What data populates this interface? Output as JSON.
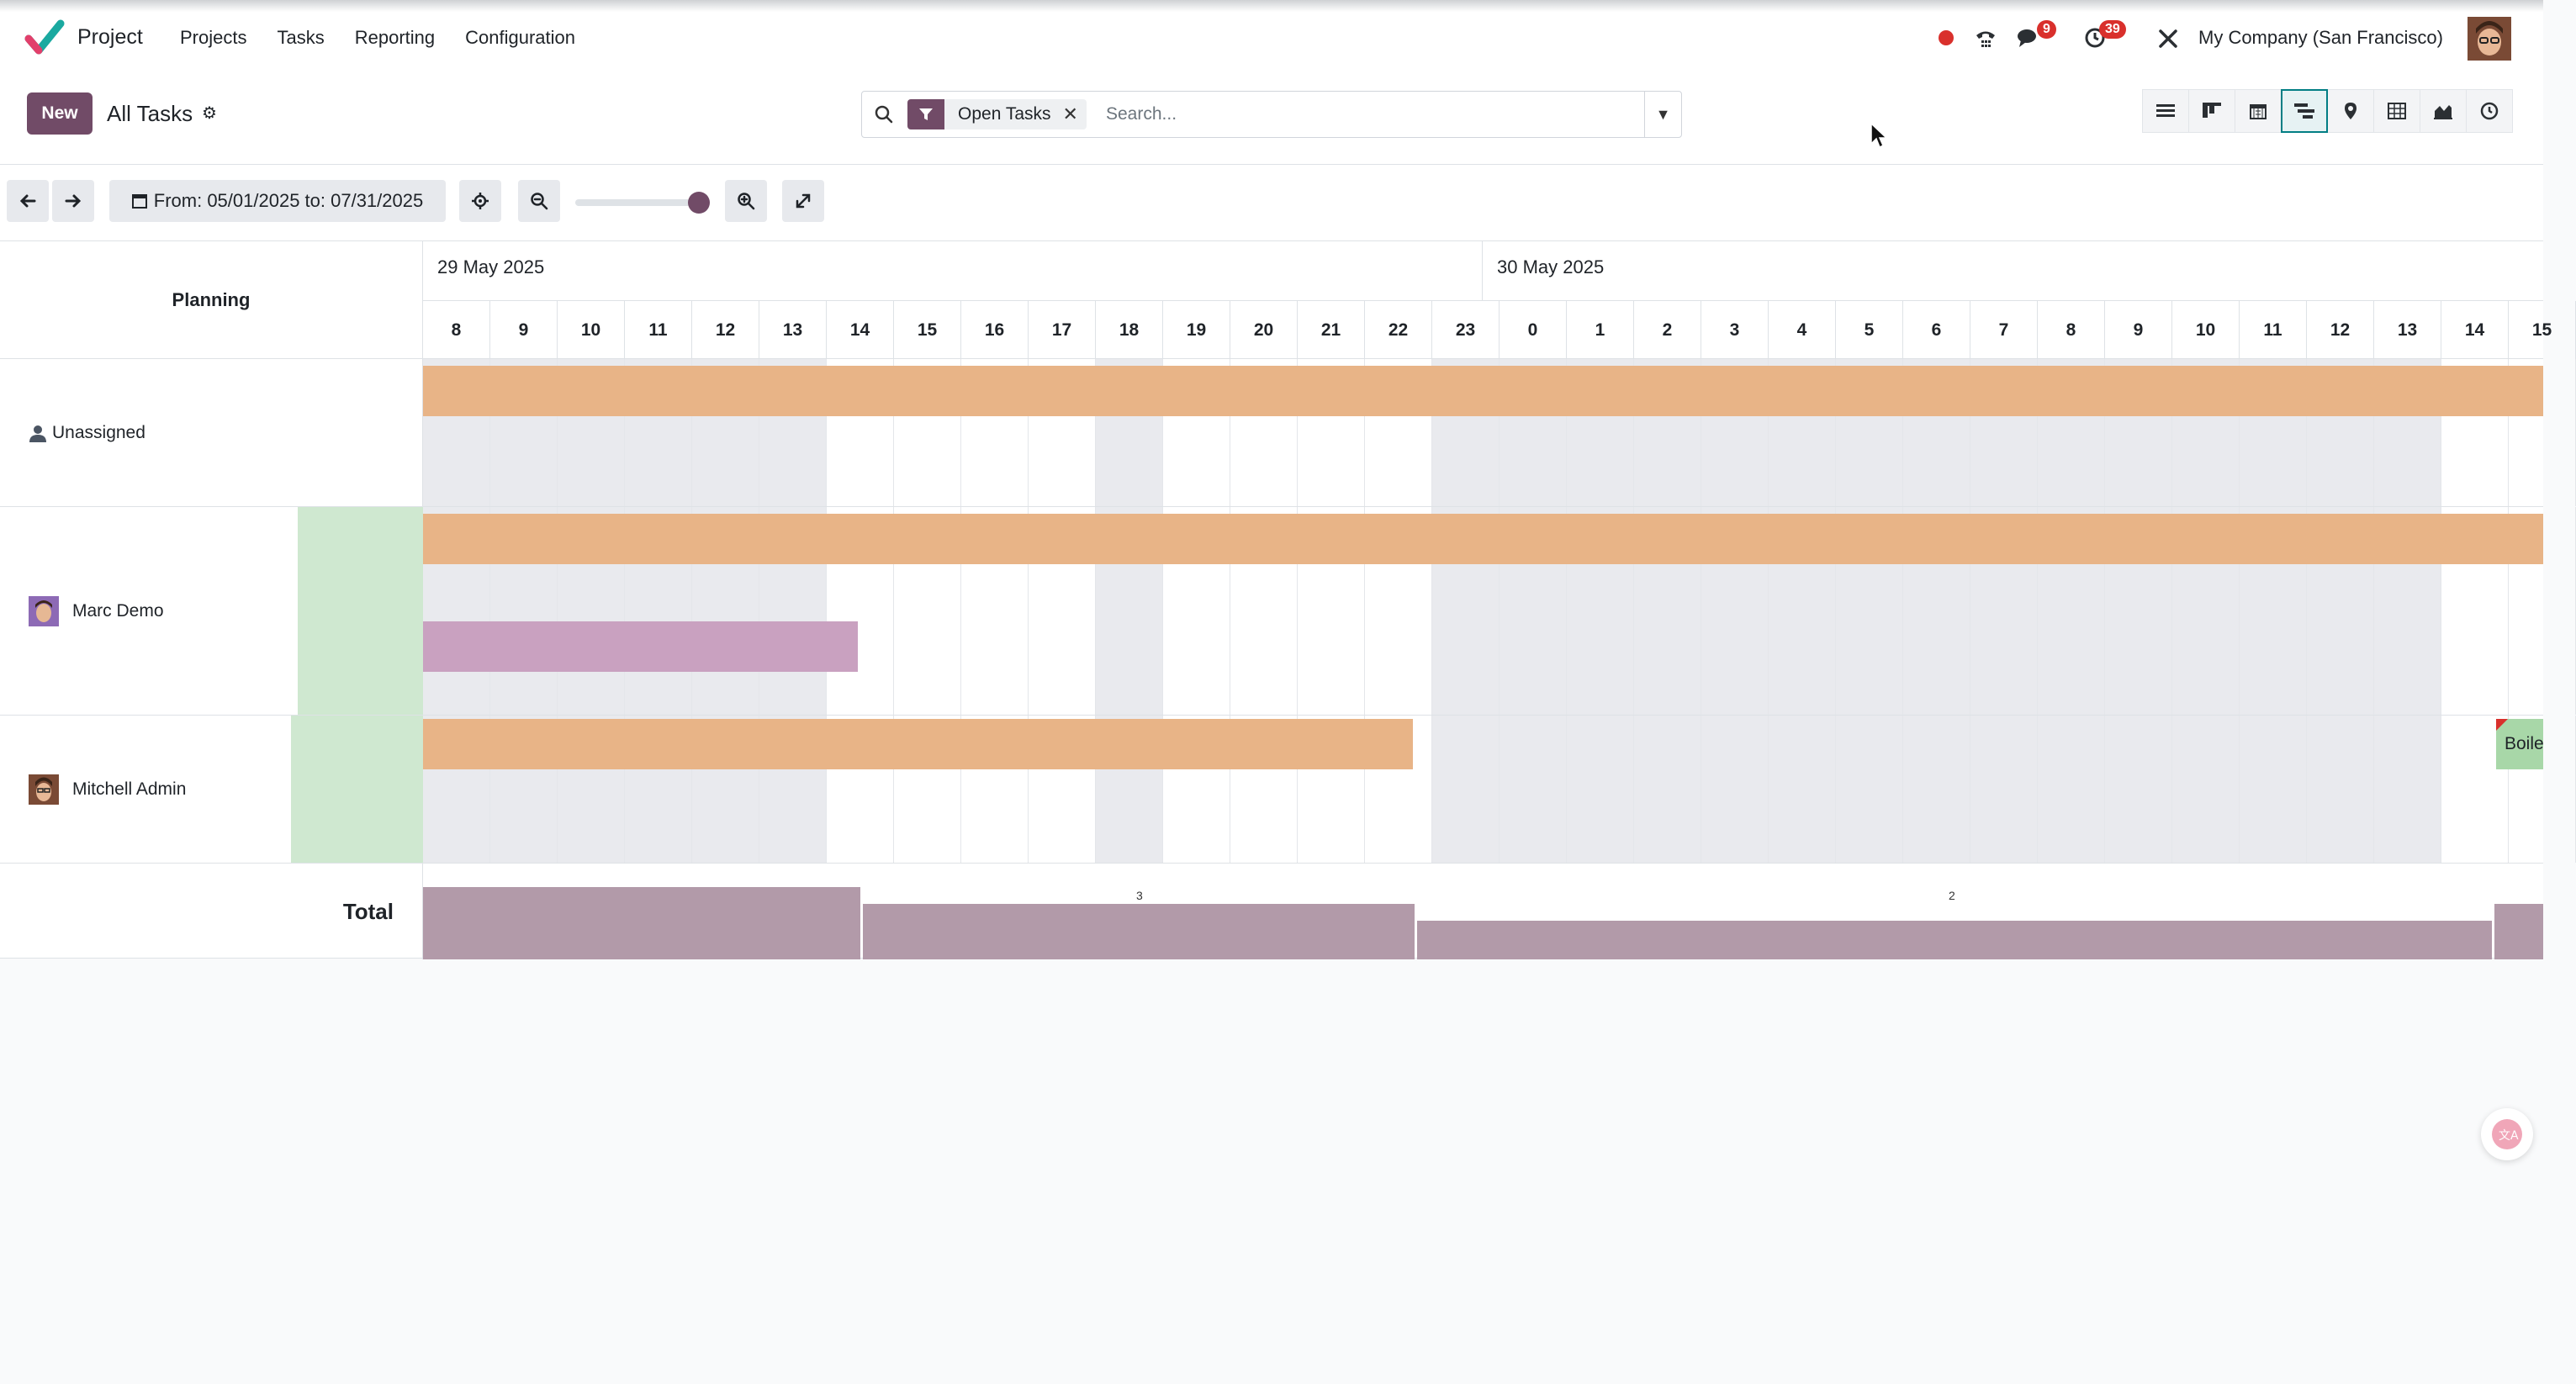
{
  "app": {
    "name": "Project"
  },
  "menu": [
    "Projects",
    "Tasks",
    "Reporting",
    "Configuration"
  ],
  "systray": {
    "messages_count": "9",
    "activities_count": "39",
    "company": "My Company (San Francisco)"
  },
  "control": {
    "new_label": "New",
    "title": "All Tasks",
    "facet_label": "Open Tasks",
    "search_placeholder": "Search...",
    "views": [
      "list-view-icon",
      "kanban-view-icon",
      "calendar-view-icon",
      "gantt-view-icon",
      "map-view-icon",
      "pivot-view-icon",
      "graph-view-icon",
      "activity-view-icon"
    ],
    "active_view": "gantt-view-icon"
  },
  "toolbar": {
    "range_label": "From: 05/01/2025 to: 07/31/2025",
    "zoom_level": 1.0
  },
  "gantt": {
    "header_left": "Planning",
    "days": [
      "29 May 2025",
      "30 May 2025"
    ],
    "hours": [
      "8",
      "9",
      "10",
      "11",
      "12",
      "13",
      "14",
      "15",
      "16",
      "17",
      "18",
      "19",
      "20",
      "21",
      "22",
      "23",
      "0",
      "1",
      "2",
      "3",
      "4",
      "5",
      "6",
      "7",
      "8",
      "9",
      "10",
      "11",
      "12",
      "13",
      "14",
      "15"
    ],
    "rows": [
      {
        "name": "Unassigned"
      },
      {
        "name": "Marc Demo"
      },
      {
        "name": "Mitchell Admin",
        "task_label": "Boile"
      }
    ],
    "total_label": "Total",
    "total_values": [
      "3",
      "2"
    ]
  },
  "colors": {
    "brand": "#714b67",
    "task_orange": "#e8b487",
    "task_purple": "#c9a1c0",
    "task_green": "#a8d7a8",
    "total_bar": "#b29aa9",
    "active_view": "#017e84"
  }
}
